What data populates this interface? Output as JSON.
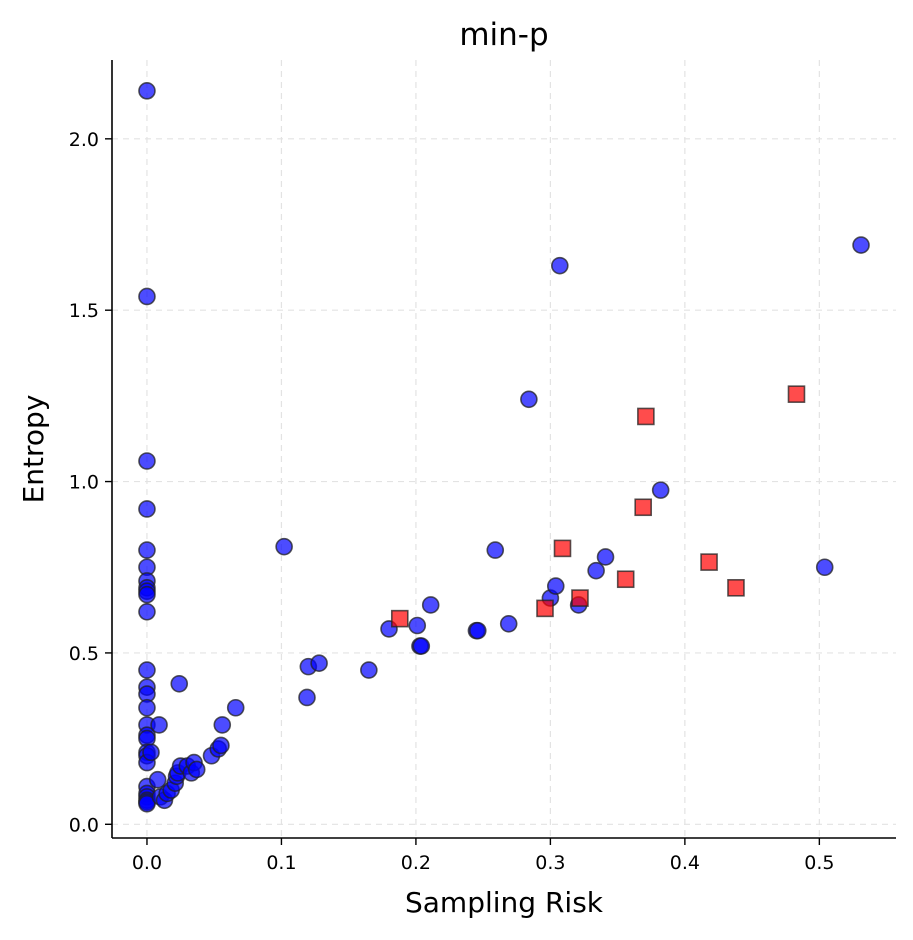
{
  "chart_data": {
    "type": "scatter",
    "title": "min-p",
    "xlabel": "Sampling Risk",
    "ylabel": "Entropy",
    "xlim": [
      -0.026,
      0.557
    ],
    "ylim": [
      -0.04,
      2.23
    ],
    "grid": true,
    "xticks": [
      {
        "value": 0.0,
        "label": "0.0"
      },
      {
        "value": 0.1,
        "label": "0.1"
      },
      {
        "value": 0.2,
        "label": "0.2"
      },
      {
        "value": 0.3,
        "label": "0.3"
      },
      {
        "value": 0.4,
        "label": "0.4"
      },
      {
        "value": 0.5,
        "label": "0.5"
      }
    ],
    "yticks": [
      {
        "value": 0.0,
        "label": "0.0"
      },
      {
        "value": 0.5,
        "label": "0.5"
      },
      {
        "value": 1.0,
        "label": "1.0"
      },
      {
        "value": 1.5,
        "label": "1.5"
      },
      {
        "value": 2.0,
        "label": "2.0"
      }
    ],
    "series": [
      {
        "name": "circles",
        "marker": "circle",
        "color": "#0000ff",
        "points": [
          [
            0.0,
            2.14
          ],
          [
            0.0,
            1.54
          ],
          [
            0.0,
            1.06
          ],
          [
            0.0,
            0.92
          ],
          [
            0.0,
            0.8
          ],
          [
            0.0,
            0.75
          ],
          [
            0.0,
            0.71
          ],
          [
            0.0,
            0.69
          ],
          [
            0.0,
            0.68
          ],
          [
            0.0,
            0.67
          ],
          [
            0.0,
            0.62
          ],
          [
            0.0,
            0.45
          ],
          [
            0.0,
            0.4
          ],
          [
            0.0,
            0.38
          ],
          [
            0.0,
            0.34
          ],
          [
            0.0,
            0.29
          ],
          [
            0.0,
            0.26
          ],
          [
            0.0,
            0.25
          ],
          [
            0.0,
            0.21
          ],
          [
            0.0,
            0.2
          ],
          [
            0.0,
            0.18
          ],
          [
            0.0,
            0.11
          ],
          [
            0.0,
            0.09
          ],
          [
            0.0,
            0.08
          ],
          [
            0.0,
            0.07
          ],
          [
            0.0,
            0.065
          ],
          [
            0.0,
            0.06
          ],
          [
            0.003,
            0.21
          ],
          [
            0.008,
            0.13
          ],
          [
            0.009,
            0.29
          ],
          [
            0.01,
            0.08
          ],
          [
            0.013,
            0.07
          ],
          [
            0.015,
            0.09
          ],
          [
            0.018,
            0.1
          ],
          [
            0.021,
            0.12
          ],
          [
            0.022,
            0.14
          ],
          [
            0.023,
            0.15
          ],
          [
            0.024,
            0.41
          ],
          [
            0.025,
            0.17
          ],
          [
            0.03,
            0.17
          ],
          [
            0.033,
            0.15
          ],
          [
            0.035,
            0.18
          ],
          [
            0.037,
            0.16
          ],
          [
            0.048,
            0.2
          ],
          [
            0.053,
            0.22
          ],
          [
            0.055,
            0.23
          ],
          [
            0.056,
            0.29
          ],
          [
            0.066,
            0.34
          ],
          [
            0.102,
            0.81
          ],
          [
            0.119,
            0.37
          ],
          [
            0.12,
            0.46
          ],
          [
            0.128,
            0.47
          ],
          [
            0.165,
            0.45
          ],
          [
            0.18,
            0.57
          ],
          [
            0.201,
            0.58
          ],
          [
            0.203,
            0.52
          ],
          [
            0.204,
            0.52
          ],
          [
            0.211,
            0.64
          ],
          [
            0.245,
            0.565
          ],
          [
            0.246,
            0.565
          ],
          [
            0.259,
            0.8
          ],
          [
            0.269,
            0.585
          ],
          [
            0.284,
            1.24
          ],
          [
            0.3,
            0.66
          ],
          [
            0.304,
            0.695
          ],
          [
            0.307,
            1.63
          ],
          [
            0.321,
            0.64
          ],
          [
            0.334,
            0.74
          ],
          [
            0.341,
            0.78
          ],
          [
            0.382,
            0.975
          ],
          [
            0.504,
            0.75
          ],
          [
            0.531,
            1.69
          ]
        ]
      },
      {
        "name": "squares",
        "marker": "square",
        "color": "#ff0000",
        "points": [
          [
            0.188,
            0.6
          ],
          [
            0.296,
            0.63
          ],
          [
            0.309,
            0.805
          ],
          [
            0.322,
            0.66
          ],
          [
            0.356,
            0.715
          ],
          [
            0.369,
            0.925
          ],
          [
            0.371,
            1.19
          ],
          [
            0.418,
            0.765
          ],
          [
            0.438,
            0.69
          ],
          [
            0.483,
            1.255
          ]
        ]
      }
    ]
  }
}
